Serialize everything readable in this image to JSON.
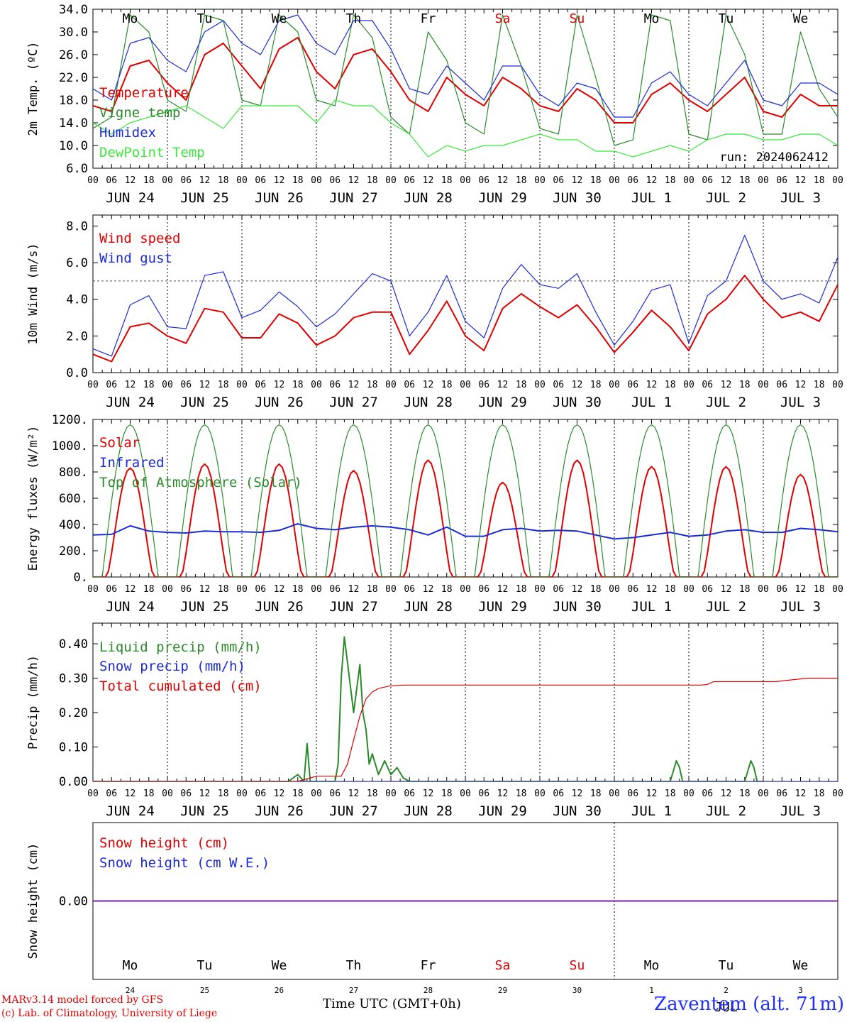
{
  "chart_data": [
    {
      "type": "line",
      "ylabel": "2m Temp. (ºC)",
      "ylim": [
        6,
        34
      ],
      "ytick_labels": [
        "6.0",
        "10.0",
        "14.0",
        "18.0",
        "22.0",
        "26.0",
        "30.0",
        "34.0"
      ],
      "run_label": "run: 2024062412",
      "x_unit": "hours since JUN 24 00 UTC",
      "series": [
        {
          "name": "Temperature",
          "color": "#e00000",
          "x": [
            0,
            6,
            12,
            18,
            24,
            30,
            36,
            42,
            48,
            54,
            60,
            66,
            72,
            78,
            84,
            90,
            96,
            102,
            108,
            114,
            120,
            126,
            132,
            138,
            144,
            150,
            156,
            162,
            168,
            174,
            180,
            186,
            192,
            198,
            204,
            210,
            216,
            222,
            228,
            234,
            240
          ],
          "y": [
            17,
            16,
            24,
            25,
            21,
            18,
            26,
            28,
            24,
            20,
            27,
            29,
            23,
            20,
            26,
            27,
            23,
            18,
            16,
            22,
            19,
            17,
            22,
            20,
            17,
            16,
            20,
            18,
            14,
            14,
            19,
            21,
            18,
            16,
            19,
            22,
            16,
            15,
            19,
            17,
            17
          ]
        },
        {
          "name": "Vigne temp",
          "color": "#2a8a2a",
          "x": [
            0,
            6,
            12,
            18,
            24,
            30,
            36,
            42,
            48,
            54,
            60,
            66,
            72,
            78,
            84,
            90,
            96,
            102,
            108,
            114,
            120,
            126,
            132,
            138,
            144,
            150,
            156,
            162,
            168,
            174,
            180,
            186,
            192,
            198,
            204,
            210,
            216,
            222,
            228,
            234,
            240
          ],
          "y": [
            13,
            15,
            33,
            30,
            18,
            16,
            33,
            32,
            18,
            17,
            33,
            30,
            18,
            17,
            33,
            29,
            15,
            12,
            30,
            25,
            14,
            12,
            33,
            24,
            13,
            12,
            33,
            22,
            10,
            11,
            33,
            32,
            12,
            11,
            33,
            26,
            12,
            12,
            30,
            20,
            15
          ]
        },
        {
          "name": "Humidex",
          "color": "#1a2ad8",
          "x": [
            0,
            6,
            12,
            18,
            24,
            30,
            36,
            42,
            48,
            54,
            60,
            66,
            72,
            78,
            84,
            90,
            96,
            102,
            108,
            114,
            120,
            126,
            132,
            138,
            144,
            150,
            156,
            162,
            168,
            174,
            180,
            186,
            192,
            198,
            204,
            210,
            216,
            222,
            228,
            234,
            240
          ],
          "y": [
            20,
            18,
            28,
            29,
            25,
            23,
            30,
            32,
            28,
            26,
            32,
            33,
            28,
            26,
            32,
            32,
            27,
            20,
            19,
            24,
            21,
            18,
            24,
            24,
            19,
            17,
            21,
            20,
            15,
            15,
            21,
            23,
            19,
            17,
            21,
            25,
            18,
            17,
            21,
            21,
            19
          ]
        },
        {
          "name": "DewPoint Temp",
          "color": "#3ce83c",
          "x": [
            0,
            6,
            12,
            18,
            24,
            30,
            36,
            42,
            48,
            54,
            60,
            66,
            72,
            78,
            84,
            90,
            96,
            102,
            108,
            114,
            120,
            126,
            132,
            138,
            144,
            150,
            156,
            162,
            168,
            174,
            180,
            186,
            192,
            198,
            204,
            210,
            216,
            222,
            228,
            234,
            240
          ],
          "y": [
            14,
            12,
            14,
            15,
            16,
            17,
            15,
            13,
            17,
            17,
            17,
            17,
            14,
            18,
            17,
            17,
            14,
            12,
            8,
            10,
            9,
            10,
            10,
            11,
            12,
            11,
            11,
            9,
            9,
            8,
            9,
            10,
            9,
            11,
            12,
            12,
            11,
            11,
            12,
            12,
            10
          ]
        }
      ]
    },
    {
      "type": "line",
      "ylabel": "10m Wind (m/s)",
      "ylim": [
        0,
        8.6
      ],
      "ytick_labels": [
        "0.0",
        "2.0",
        "4.0",
        "6.0",
        "8.0"
      ],
      "reference_line": 5,
      "x_unit": "hours since JUN 24 00 UTC",
      "series": [
        {
          "name": "Wind speed",
          "color": "#e00000",
          "x": [
            0,
            6,
            12,
            18,
            24,
            30,
            36,
            42,
            48,
            54,
            60,
            66,
            72,
            78,
            84,
            90,
            96,
            102,
            108,
            114,
            120,
            126,
            132,
            138,
            144,
            150,
            156,
            162,
            168,
            174,
            180,
            186,
            192,
            198,
            204,
            210,
            216,
            222,
            228,
            234,
            240
          ],
          "y": [
            1.0,
            0.6,
            2.5,
            2.7,
            2.0,
            1.6,
            3.5,
            3.3,
            1.9,
            1.9,
            3.2,
            2.7,
            1.5,
            2.0,
            3.0,
            3.3,
            3.3,
            1.0,
            2.3,
            3.9,
            2.0,
            1.2,
            3.5,
            4.3,
            3.6,
            3.0,
            3.7,
            2.5,
            1.1,
            2.2,
            3.4,
            2.5,
            1.2,
            3.2,
            4.0,
            5.3,
            4.0,
            3.0,
            3.3,
            2.8,
            4.8
          ]
        },
        {
          "name": "Wind gust",
          "color": "#1a2ad8",
          "x": [
            0,
            6,
            12,
            18,
            24,
            30,
            36,
            42,
            48,
            54,
            60,
            66,
            72,
            78,
            84,
            90,
            96,
            102,
            108,
            114,
            120,
            126,
            132,
            138,
            144,
            150,
            156,
            162,
            168,
            174,
            180,
            186,
            192,
            198,
            204,
            210,
            216,
            222,
            228,
            234,
            240
          ],
          "y": [
            1.3,
            0.9,
            3.7,
            4.2,
            2.5,
            2.4,
            5.3,
            5.5,
            3.0,
            3.4,
            4.4,
            3.6,
            2.5,
            3.2,
            4.3,
            5.4,
            5.0,
            2.0,
            3.3,
            5.3,
            2.8,
            1.9,
            4.6,
            5.9,
            4.8,
            4.6,
            5.4,
            3.3,
            1.5,
            2.8,
            4.5,
            4.8,
            1.6,
            4.2,
            5.0,
            7.5,
            5.0,
            4.0,
            4.3,
            3.8,
            6.3
          ]
        }
      ]
    },
    {
      "type": "line",
      "ylabel": "Energy fluxes (W/m²)",
      "ylim": [
        0,
        1200
      ],
      "ytick_labels": [
        "0.",
        "200.",
        "400.",
        "600.",
        "800.",
        "1000.",
        "1200."
      ],
      "x_unit": "hours since JUN 24 00 UTC",
      "solar_peaks_by_day": [
        830,
        860,
        860,
        810,
        890,
        720,
        890,
        840,
        840,
        780
      ],
      "toa_peak": 1160,
      "series": [
        {
          "name": "Solar",
          "color": "#e00000",
          "x": [],
          "y": []
        },
        {
          "name": "Infrared",
          "color": "#1a2ad8",
          "x": [
            0,
            6,
            12,
            18,
            24,
            30,
            36,
            42,
            48,
            54,
            60,
            66,
            72,
            78,
            84,
            90,
            96,
            102,
            108,
            114,
            120,
            126,
            132,
            138,
            144,
            150,
            156,
            162,
            168,
            174,
            180,
            186,
            192,
            198,
            204,
            210,
            216,
            222,
            228,
            234,
            240
          ],
          "y": [
            320,
            325,
            390,
            350,
            340,
            335,
            350,
            345,
            345,
            340,
            355,
            405,
            370,
            360,
            380,
            390,
            380,
            360,
            320,
            380,
            310,
            310,
            360,
            370,
            350,
            355,
            350,
            320,
            290,
            300,
            320,
            340,
            310,
            320,
            350,
            360,
            340,
            340,
            370,
            360,
            345
          ]
        },
        {
          "name": "Top of Atmosphere (Solar)",
          "color": "#2a8a2a",
          "x": [],
          "y": []
        }
      ]
    },
    {
      "type": "line",
      "ylabel": "Precip (mm/h)",
      "ylim": [
        0,
        0.46
      ],
      "ytick_labels": [
        "0.00",
        "0.10",
        "0.20",
        "0.30",
        "0.40"
      ],
      "x_unit": "hours since JUN 24 00 UTC",
      "series": [
        {
          "name": "Liquid precip (mm/h)",
          "color": "#2a8a2a",
          "x": [
            0,
            60,
            63,
            66,
            68,
            69,
            70,
            72,
            75,
            78,
            79,
            80,
            81,
            84,
            86,
            87,
            88,
            89,
            90,
            92,
            94,
            96,
            98,
            100,
            102,
            105,
            108,
            160,
            162,
            165,
            186,
            188,
            189,
            190,
            192,
            210,
            212,
            213,
            214,
            216
          ],
          "y": [
            0,
            0,
            0,
            0.02,
            0,
            0.11,
            0,
            0,
            0,
            0,
            0.05,
            0.3,
            0.42,
            0.2,
            0.34,
            0.2,
            0.15,
            0.05,
            0.08,
            0.02,
            0.06,
            0.02,
            0.04,
            0.01,
            0,
            0,
            0,
            0,
            0,
            0,
            0,
            0.06,
            0.04,
            0,
            0,
            0,
            0.06,
            0.04,
            0,
            0
          ]
        },
        {
          "name": "Snow precip (mm/h)",
          "color": "#1a2ad8",
          "x": [
            0,
            240
          ],
          "y": [
            0,
            0
          ]
        },
        {
          "name": "Total cumulated (cm)",
          "color": "#e00000",
          "x": [
            0,
            66,
            70,
            72,
            80,
            82,
            84,
            86,
            88,
            90,
            92,
            96,
            100,
            120,
            160,
            196,
            198,
            200,
            220,
            230,
            240
          ],
          "y": [
            0,
            0,
            0.01,
            0.015,
            0.015,
            0.05,
            0.12,
            0.19,
            0.24,
            0.26,
            0.27,
            0.278,
            0.28,
            0.28,
            0.28,
            0.28,
            0.282,
            0.29,
            0.29,
            0.3,
            0.3
          ]
        }
      ]
    },
    {
      "type": "line",
      "ylabel": "Snow height (cm)",
      "ylim": [
        -1,
        1
      ],
      "ytick_labels": [
        "0.00"
      ],
      "x_unit": "hours since JUN 24 00 UTC",
      "series": [
        {
          "name": "Snow height (cm)",
          "color": "#e00000",
          "x": [
            0,
            240
          ],
          "y": [
            0,
            0
          ]
        },
        {
          "name": "Snow height (cm W.E.)",
          "color": "#1a2ad8",
          "x": [
            0,
            240
          ],
          "y": [
            0,
            0
          ]
        }
      ]
    }
  ],
  "axis": {
    "hour_labels": [
      "00",
      "06",
      "12",
      "18"
    ],
    "date_labels": [
      "JUN 24",
      "JUN 25",
      "JUN 26",
      "JUN 27",
      "JUN 28",
      "JUN 29",
      "JUN 30",
      "JUL  1",
      "JUL  2",
      "JUL  3"
    ],
    "weekday_labels": [
      "Mo",
      "Tu",
      "We",
      "Th",
      "Fr",
      "Sa",
      "Su",
      "Mo",
      "Tu",
      "We"
    ],
    "weekend_indices": [
      5,
      6
    ],
    "day_numbers": [
      "24",
      "25",
      "26",
      "27",
      "28",
      "29",
      "30",
      "1",
      "2",
      "3"
    ],
    "bottom_xlabel": "Time UTC (GMT+0h)",
    "bottom_month_label": "JUL"
  },
  "footer": {
    "credit_line_1": "MARv3.14 model forced by GFS",
    "credit_line_2": "(c) Lab. of Climatology, University of Liege",
    "station": "Zaventem (alt. 71m)"
  }
}
